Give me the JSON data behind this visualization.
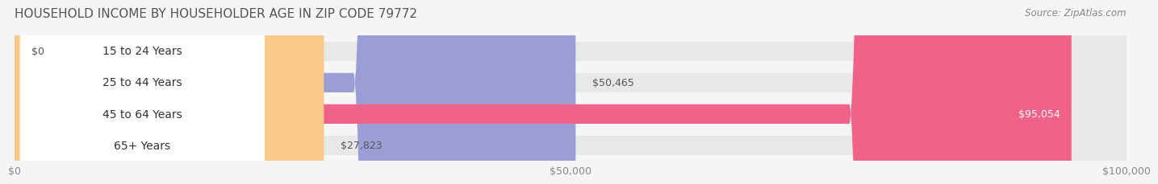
{
  "title": "HOUSEHOLD INCOME BY HOUSEHOLDER AGE IN ZIP CODE 79772",
  "source": "Source: ZipAtlas.com",
  "categories": [
    "15 to 24 Years",
    "25 to 44 Years",
    "45 to 64 Years",
    "65+ Years"
  ],
  "values": [
    0,
    50465,
    95054,
    27823
  ],
  "bar_colors": [
    "#5ecfca",
    "#9b9ed4",
    "#f0628a",
    "#f9c98a"
  ],
  "label_colors": [
    "#333333",
    "#333333",
    "#ffffff",
    "#333333"
  ],
  "bg_color": "#f5f5f5",
  "bar_bg_color": "#e8e8e8",
  "xlim": [
    0,
    100000
  ],
  "xticks": [
    0,
    50000,
    100000
  ],
  "xtick_labels": [
    "$0",
    "$50,000",
    "$100,000"
  ],
  "value_labels": [
    "$0",
    "$50,465",
    "$95,054",
    "$27,823"
  ],
  "title_fontsize": 11,
  "source_fontsize": 8.5,
  "label_fontsize": 10,
  "value_fontsize": 9,
  "tick_fontsize": 9
}
